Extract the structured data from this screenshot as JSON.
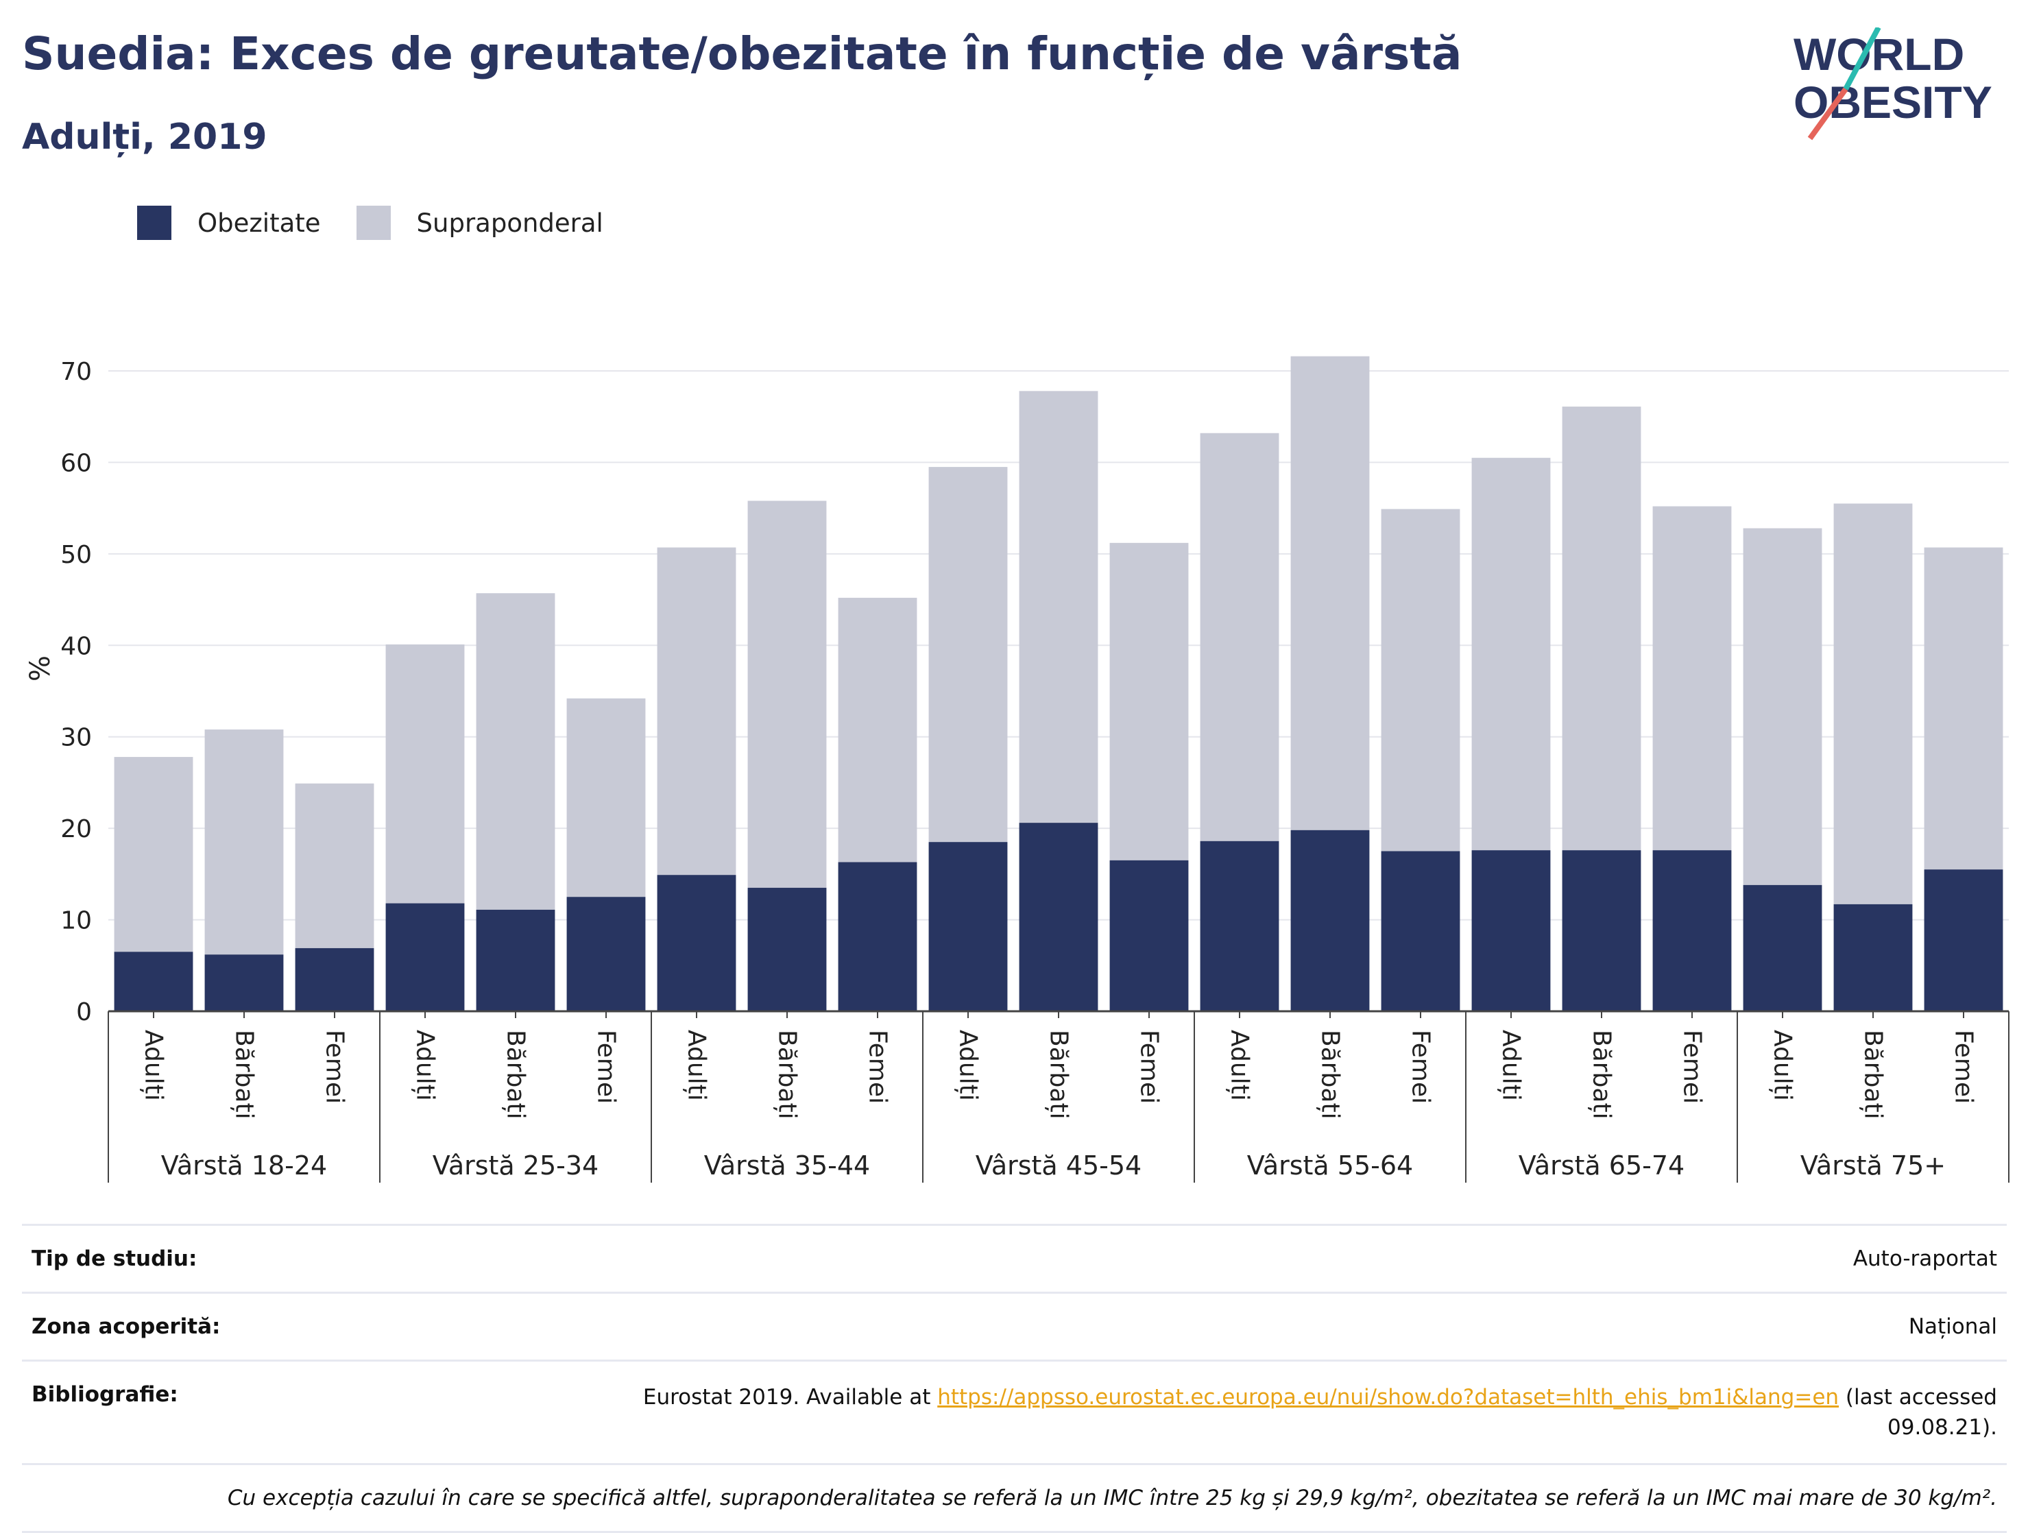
{
  "title": "Suedia: Exces de greutate/obezitate în funcție de vârstă",
  "subtitle": "Adulți, 2019",
  "logo": {
    "line1": "WORLD",
    "line2": "OBESITY",
    "slash_colors": [
      "#2bbbb0",
      "#e5645a"
    ]
  },
  "colors": {
    "obesity": "#283561",
    "overweight": "#c8cad6",
    "title": "#2a3561",
    "link": "#e8a317"
  },
  "legend": [
    {
      "label": "Obezitate",
      "color": "#283561"
    },
    {
      "label": "Supraponderal",
      "color": "#c8cad6"
    }
  ],
  "chart_data": {
    "type": "bar",
    "stacked": true,
    "ylabel": "%",
    "ylim": [
      0,
      70
    ],
    "yticks": [
      0,
      10,
      20,
      30,
      40,
      50,
      60,
      70
    ],
    "grid": true,
    "legend_position": "top-left",
    "groups": [
      {
        "label": "Vârstă 18-24",
        "categories": [
          "Adulți",
          "Bărbați",
          "Femei"
        ],
        "obesity": [
          6.5,
          6.2,
          6.9
        ],
        "overweight": [
          21.3,
          24.6,
          18.0
        ]
      },
      {
        "label": "Vârstă 25-34",
        "categories": [
          "Adulți",
          "Bărbați",
          "Femei"
        ],
        "obesity": [
          11.8,
          11.1,
          12.5
        ],
        "overweight": [
          28.3,
          34.6,
          21.7
        ]
      },
      {
        "label": "Vârstă 35-44",
        "categories": [
          "Adulți",
          "Bărbați",
          "Femei"
        ],
        "obesity": [
          14.9,
          13.5,
          16.3
        ],
        "overweight": [
          35.8,
          42.3,
          28.9
        ]
      },
      {
        "label": "Vârstă 45-54",
        "categories": [
          "Adulți",
          "Bărbați",
          "Femei"
        ],
        "obesity": [
          18.5,
          20.6,
          16.5
        ],
        "overweight": [
          41.0,
          47.2,
          34.7
        ]
      },
      {
        "label": "Vârstă 55-64",
        "categories": [
          "Adulți",
          "Bărbați",
          "Femei"
        ],
        "obesity": [
          18.6,
          19.8,
          17.5
        ],
        "overweight": [
          44.6,
          51.8,
          37.4
        ]
      },
      {
        "label": "Vârstă 65-74",
        "categories": [
          "Adulți",
          "Bărbați",
          "Femei"
        ],
        "obesity": [
          17.6,
          17.6,
          17.6
        ],
        "overweight": [
          42.9,
          48.5,
          37.6
        ]
      },
      {
        "label": "Vârstă 75+",
        "categories": [
          "Adulți",
          "Bărbați",
          "Femei"
        ],
        "obesity": [
          13.8,
          11.7,
          15.5
        ],
        "overweight": [
          39.0,
          43.8,
          35.2
        ]
      }
    ]
  },
  "info": {
    "study_type_label": "Tip de studiu:",
    "study_type_value": "Auto-raportat",
    "area_label": "Zona acoperită:",
    "area_value": "Național",
    "bibliography_label": "Bibliografie:",
    "bibliography_prefix": "Eurostat 2019. Available at ",
    "bibliography_link": "https://appsso.eurostat.ec.europa.eu/nui/show.do?dataset=hlth_ehis_bm1i&lang=en",
    "bibliography_suffix": " (last accessed 09.08.21).",
    "note": "Cu excepția cazului în care se specifică altfel, supraponderalitatea se referă la un IMC între 25 kg și 29,9 kg/m², obezitatea se referă la un IMC mai mare de 30 kg/m²."
  }
}
